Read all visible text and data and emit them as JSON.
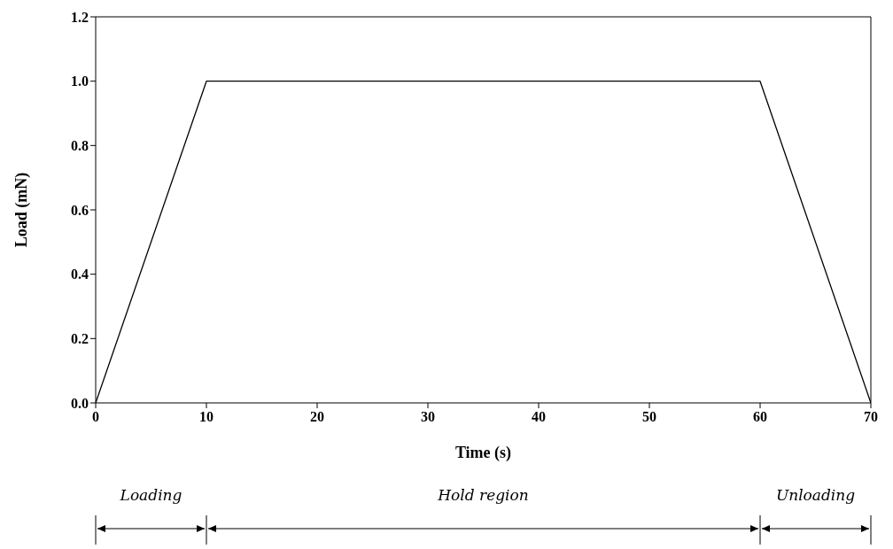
{
  "chart_data": {
    "type": "line",
    "xlabel": "Time (s)",
    "ylabel": "Load (mN)",
    "x": [
      0,
      10,
      60,
      70
    ],
    "values": [
      0,
      1,
      1,
      0
    ],
    "color": "#000000",
    "xlim": [
      0,
      70
    ],
    "xticks": [
      0,
      10,
      20,
      30,
      40,
      50,
      60,
      70
    ],
    "ylim": [
      0,
      1.2
    ],
    "yticks": [
      {
        "value": 0,
        "label": "0.0"
      },
      {
        "value": 0.2,
        "label": "0.2"
      },
      {
        "value": 0.4,
        "label": "0.4"
      },
      {
        "value": 0.6,
        "label": "0.6"
      },
      {
        "value": 0.8,
        "label": "0.8"
      },
      {
        "value": 1,
        "label": "1.0"
      },
      {
        "value": 1.2,
        "label": "1.2"
      }
    ],
    "line_style": "solid",
    "annotations": [
      "Loading",
      "Hold region",
      "Unloading"
    ]
  }
}
